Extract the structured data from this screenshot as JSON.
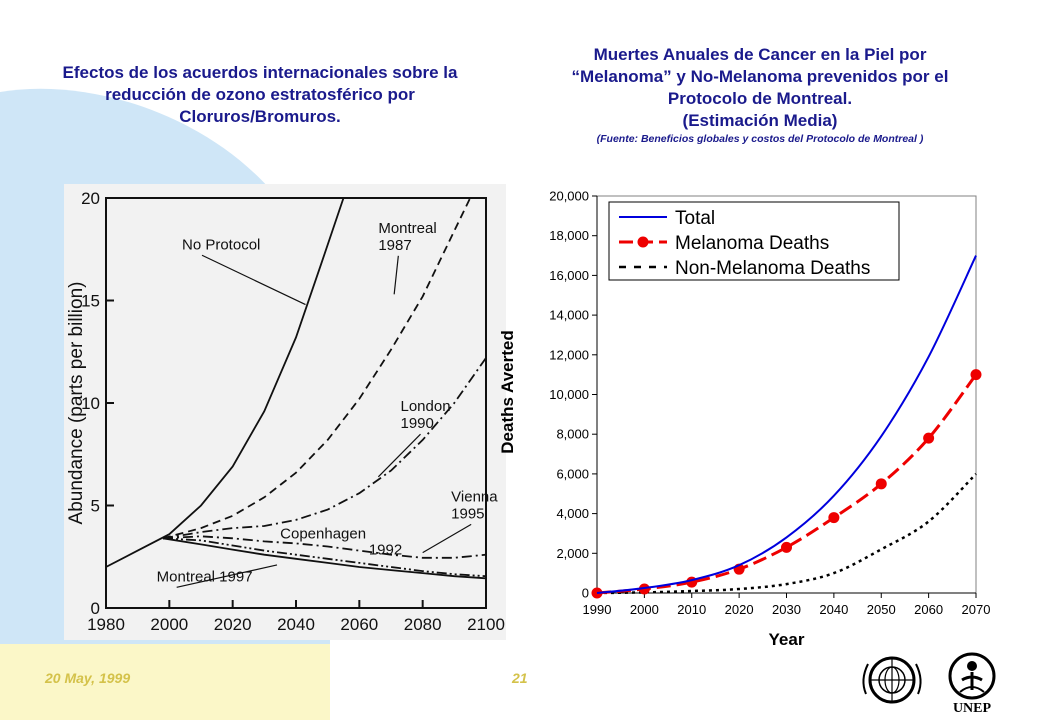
{
  "slide": {
    "left_title": "Efectos de los acuerdos internacionales sobre la reducción de ozono estratosférico por Cloruros/Bromuros.",
    "right_title_lines": [
      "Muertes Anuales de Cancer en la Piel por",
      "“Melanoma” y No-Melanoma prevenidos por el",
      "Protocolo de Montreal.",
      "(Estimación Media)"
    ],
    "right_source": "(Fuente: Beneficios globales y costos del Protocolo de Montreal )",
    "footer_date": "20 May, 1999",
    "footer_page": "21",
    "logo_text": "UNEP",
    "colors": {
      "title": "#1a1a8c",
      "footer": "#d4c24a",
      "bg_blob": "#cfe6f7",
      "bg_strip": "#fbf7c8"
    }
  },
  "chart_data": [
    {
      "type": "line",
      "ylabel": "Abundance (parts per billion)",
      "xlim": [
        1980,
        2100
      ],
      "ylim": [
        0,
        20
      ],
      "x_ticks": [
        "1980",
        "2000",
        "2020",
        "2040",
        "2060",
        "2080",
        "2100"
      ],
      "y_ticks": [
        "0",
        "5",
        "10",
        "15",
        "20"
      ],
      "series": [
        {
          "name": "No Protocol",
          "style": "solid",
          "x": [
            1980,
            1990,
            2000,
            2010,
            2020,
            2030,
            2040,
            2048,
            2055
          ],
          "y": [
            2.0,
            2.8,
            3.6,
            5.0,
            6.9,
            9.6,
            13.2,
            16.8,
            20.0
          ]
        },
        {
          "name": "Montreal 1987",
          "style": "dashed",
          "x": [
            1998,
            2010,
            2020,
            2030,
            2040,
            2050,
            2060,
            2070,
            2080,
            2090,
            2095
          ],
          "y": [
            3.4,
            3.9,
            4.5,
            5.4,
            6.6,
            8.2,
            10.2,
            12.6,
            15.2,
            18.4,
            20.0
          ]
        },
        {
          "name": "London 1990",
          "style": "dashdot",
          "x": [
            1998,
            2010,
            2020,
            2030,
            2040,
            2050,
            2060,
            2070,
            2080,
            2090,
            2100
          ],
          "y": [
            3.4,
            3.7,
            3.9,
            4.0,
            4.3,
            4.8,
            5.6,
            6.7,
            8.2,
            10.0,
            12.2
          ]
        },
        {
          "name": "Vienna 1995",
          "style": "dashdot",
          "x": [
            1998,
            2010,
            2020,
            2030,
            2040,
            2050,
            2060,
            2070,
            2080,
            2090,
            2100
          ],
          "y": [
            3.4,
            3.5,
            3.4,
            3.25,
            3.15,
            3.0,
            2.8,
            2.6,
            2.45,
            2.45,
            2.6
          ]
        },
        {
          "name": "Copenhagen 1992",
          "style": "dashdotdot",
          "x": [
            1998,
            2010,
            2020,
            2030,
            2040,
            2050,
            2060,
            2070,
            2080,
            2090,
            2100
          ],
          "y": [
            3.4,
            3.3,
            3.05,
            2.8,
            2.6,
            2.4,
            2.2,
            2.0,
            1.8,
            1.65,
            1.55
          ]
        },
        {
          "name": "Montreal 1997",
          "style": "solid",
          "x": [
            1998,
            2010,
            2020,
            2030,
            2040,
            2050,
            2060,
            2070,
            2080,
            2090,
            2100
          ],
          "y": [
            3.4,
            3.1,
            2.85,
            2.6,
            2.4,
            2.2,
            2.0,
            1.85,
            1.7,
            1.55,
            1.45
          ]
        }
      ],
      "annotations": [
        {
          "lines": [
            "No Protocol"
          ],
          "x": 2004,
          "y": 17.5,
          "arrow_to": [
            2043,
            14.8
          ]
        },
        {
          "lines": [
            "Montreal",
            "1987"
          ],
          "x": 2066,
          "y": 18.3,
          "arrow_to": [
            2071,
            15.3
          ]
        },
        {
          "lines": [
            "London",
            "1990"
          ],
          "x": 2073,
          "y": 9.6,
          "arrow_to": [
            2066,
            6.4
          ]
        },
        {
          "lines": [
            "Vienna",
            "1995"
          ],
          "x": 2089,
          "y": 5.2,
          "arrow_to": [
            2080,
            2.7
          ]
        },
        {
          "lines": [
            "Copenhagen"
          ],
          "x": 2035,
          "y": 3.4,
          "arrow_to": []
        },
        {
          "lines": [
            "1992"
          ],
          "x": 2063,
          "y": 2.6,
          "arrow_to": []
        },
        {
          "lines": [
            "Montreal 1997"
          ],
          "x": 1996,
          "y": 1.3,
          "arrow_to": [
            2034,
            2.1
          ]
        }
      ]
    },
    {
      "type": "line",
      "xlabel": "Year",
      "ylabel": "Deaths Averted",
      "xlim": [
        1990,
        2070
      ],
      "ylim": [
        0,
        20000
      ],
      "x_ticks": [
        "1990",
        "2000",
        "2010",
        "2020",
        "2030",
        "2040",
        "2050",
        "2060",
        "2070"
      ],
      "y_ticks": [
        "0",
        "2,000",
        "4,000",
        "6,000",
        "8,000",
        "10,000",
        "12,000",
        "14,000",
        "16,000",
        "18,000",
        "20,000"
      ],
      "legend_position": "top-left",
      "grid": false,
      "series": [
        {
          "name": "Total",
          "color": "#0000dd",
          "style": "solid",
          "markers": false,
          "x": [
            1990,
            2000,
            2010,
            2020,
            2030,
            2040,
            2050,
            2060,
            2070
          ],
          "y": [
            0,
            250,
            650,
            1400,
            2800,
            4900,
            7900,
            11900,
            17000
          ]
        },
        {
          "name": "Melanoma Deaths",
          "color": "#ee0000",
          "style": "dashed",
          "markers": true,
          "x": [
            1990,
            2000,
            2010,
            2020,
            2030,
            2040,
            2050,
            2060,
            2070
          ],
          "y": [
            0,
            200,
            550,
            1200,
            2300,
            3800,
            5500,
            7800,
            11000
          ]
        },
        {
          "name": "Non-Melanoma Deaths",
          "color": "#000000",
          "style": "dotted",
          "markers": false,
          "x": [
            1990,
            2000,
            2010,
            2020,
            2030,
            2040,
            2050,
            2060,
            2070
          ],
          "y": [
            0,
            30,
            100,
            200,
            450,
            1000,
            2200,
            3600,
            6000
          ]
        }
      ]
    }
  ]
}
